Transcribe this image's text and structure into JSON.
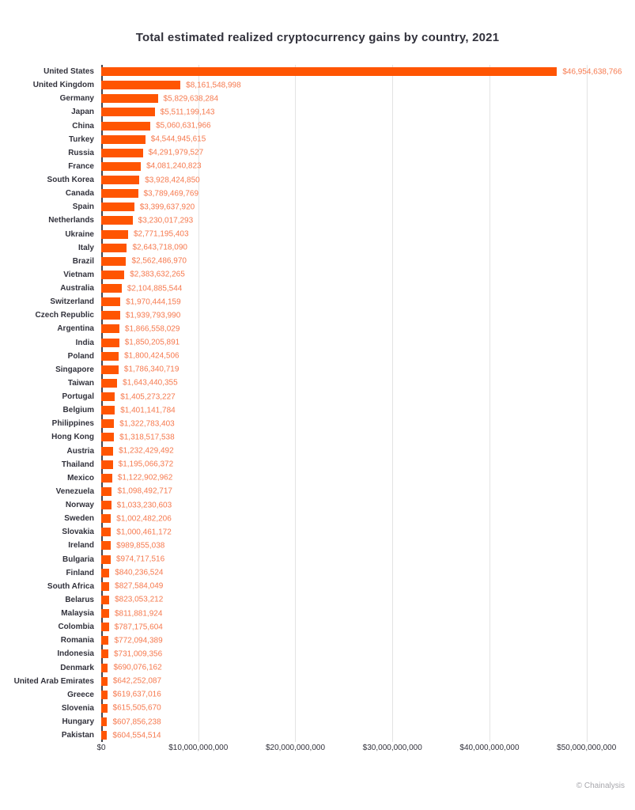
{
  "attribution": "© Chainalysis",
  "colors": {
    "background": "#ffffff",
    "bar": "#ff5502",
    "value_label": "#f6794e",
    "text": "#32323c",
    "gridline": "#e3e3e3",
    "axis_line": "#45454d",
    "attribution": "#a7a7ac"
  },
  "chart_data": {
    "type": "bar",
    "orientation": "horizontal",
    "title": "Total estimated realized cryptocurrency gains by country, 2021",
    "xlabel": "",
    "ylabel": "",
    "xlim": [
      0,
      53200000000
    ],
    "grid": "vertical-gridlines-only",
    "legend": "none",
    "x_tick_values": [
      0,
      10000000000,
      20000000000,
      30000000000,
      40000000000,
      50000000000
    ],
    "x_tick_labels": [
      "$0",
      "$10,000,000,000",
      "$20,000,000,000",
      "$30,000,000,000",
      "$40,000,000,000",
      "$50,000,000,000"
    ],
    "categories": [
      "United States",
      "United Kingdom",
      "Germany",
      "Japan",
      "China",
      "Turkey",
      "Russia",
      "France",
      "South Korea",
      "Canada",
      "Spain",
      "Netherlands",
      "Ukraine",
      "Italy",
      "Brazil",
      "Vietnam",
      "Australia",
      "Switzerland",
      "Czech Republic",
      "Argentina",
      "India",
      "Poland",
      "Singapore",
      "Taiwan",
      "Portugal",
      "Belgium",
      "Philippines",
      "Hong Kong",
      "Austria",
      "Thailand",
      "Mexico",
      "Venezuela",
      "Norway",
      "Sweden",
      "Slovakia",
      "Ireland",
      "Bulgaria",
      "Finland",
      "South Africa",
      "Belarus",
      "Malaysia",
      "Colombia",
      "Romania",
      "Indonesia",
      "Denmark",
      "United Arab Emirates",
      "Greece",
      "Slovenia",
      "Hungary",
      "Pakistan"
    ],
    "values": [
      46954638766,
      8161548998,
      5829638284,
      5511199143,
      5060631966,
      4544945615,
      4291979527,
      4081240823,
      3928424850,
      3789469769,
      3399637920,
      3230017293,
      2771195403,
      2643718090,
      2562486970,
      2383632265,
      2104885544,
      1970444159,
      1939793990,
      1866558029,
      1850205891,
      1800424506,
      1786340719,
      1643440355,
      1405273227,
      1401141784,
      1322783403,
      1318517538,
      1232429492,
      1195066372,
      1122902962,
      1098492717,
      1033230603,
      1002482206,
      1000461172,
      989855038,
      974717516,
      840236524,
      827584049,
      823053212,
      811881924,
      787175604,
      772094389,
      731009356,
      690076162,
      642252087,
      619637016,
      615505670,
      607856238,
      604554514
    ],
    "value_labels": [
      "$46,954,638,766",
      "$8,161,548,998",
      "$5,829,638,284",
      "$5,511,199,143",
      "$5,060,631,966",
      "$4,544,945,615",
      "$4,291,979,527",
      "$4,081,240,823",
      "$3,928,424,850",
      "$3,789,469,769",
      "$3,399,637,920",
      "$3,230,017,293",
      "$2,771,195,403",
      "$2,643,718,090",
      "$2,562,486,970",
      "$2,383,632,265",
      "$2,104,885,544",
      "$1,970,444,159",
      "$1,939,793,990",
      "$1,866,558,029",
      "$1,850,205,891",
      "$1,800,424,506",
      "$1,786,340,719",
      "$1,643,440,355",
      "$1,405,273,227",
      "$1,401,141,784",
      "$1,322,783,403",
      "$1,318,517,538",
      "$1,232,429,492",
      "$1,195,066,372",
      "$1,122,902,962",
      "$1,098,492,717",
      "$1,033,230,603",
      "$1,002,482,206",
      "$1,000,461,172",
      "$989,855,038",
      "$974,717,516",
      "$840,236,524",
      "$827,584,049",
      "$823,053,212",
      "$811,881,924",
      "$787,175,604",
      "$772,094,389",
      "$731,009,356",
      "$690,076,162",
      "$642,252,087",
      "$619,637,016",
      "$615,505,670",
      "$607,856,238",
      "$604,554,514"
    ]
  }
}
